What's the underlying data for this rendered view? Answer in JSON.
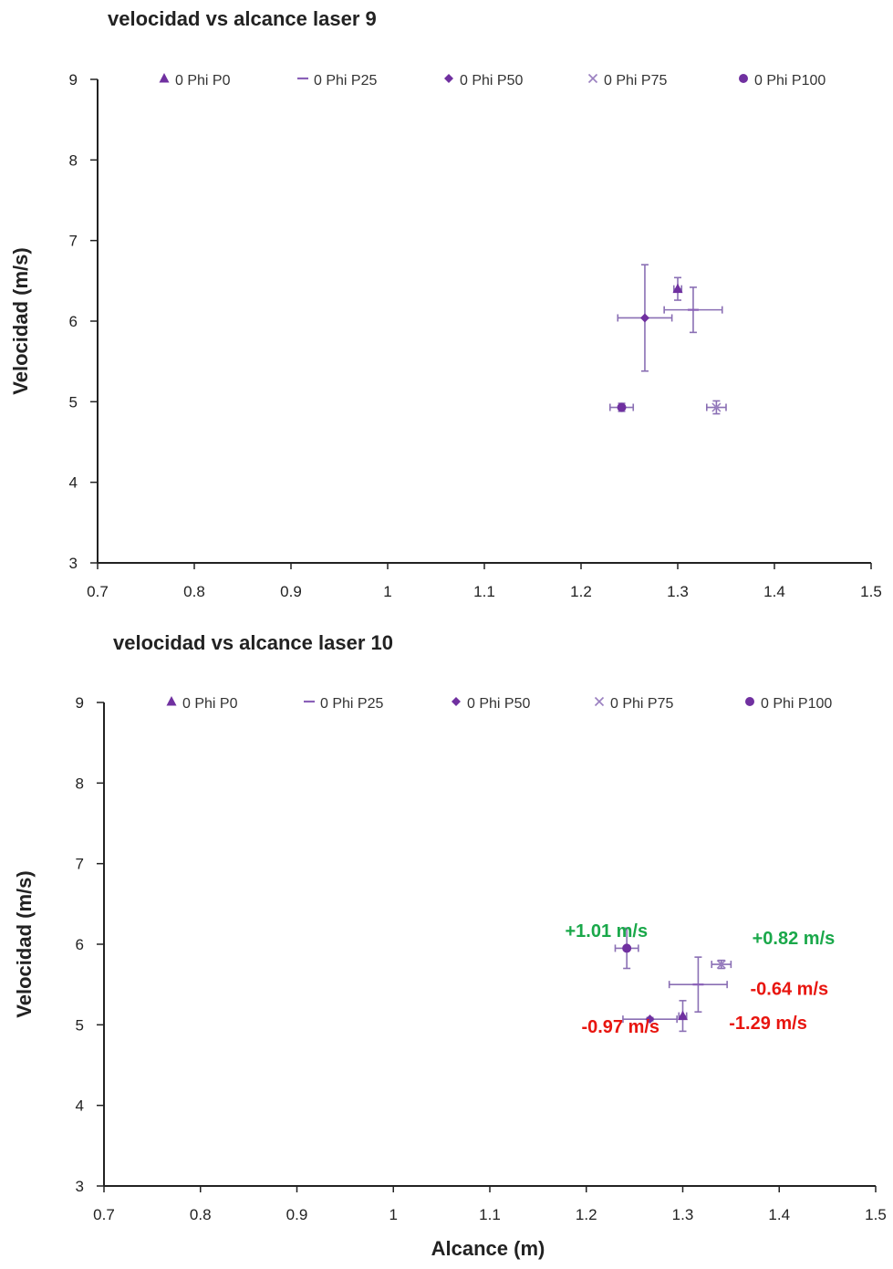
{
  "chart_data": [
    {
      "type": "scatter",
      "title": "velocidad vs alcance laser 9",
      "xlabel": "",
      "ylabel": "Velocidad (m/s)",
      "xlim": [
        0.7,
        1.5
      ],
      "ylim": [
        3,
        9
      ],
      "xticks": [
        "0.7",
        "0.8",
        "0.9",
        "1",
        "1.1",
        "1.2",
        "1.3",
        "1.4",
        "1.5"
      ],
      "yticks": [
        "3",
        "4",
        "5",
        "6",
        "7",
        "8",
        "9"
      ],
      "grid": false,
      "legend_position": "top",
      "series": [
        {
          "name": "0 Phi P0",
          "marker": "triangle",
          "color": "#7030a0",
          "x": 1.3,
          "y": 6.4,
          "xerr": 0.004,
          "yerr": 0.14
        },
        {
          "name": "0 Phi P25",
          "marker": "dash",
          "color": "#8a60b8",
          "x": 1.316,
          "y": 6.14,
          "xerr": 0.03,
          "yerr": 0.28
        },
        {
          "name": "0 Phi P50",
          "marker": "diamond",
          "color": "#7030a0",
          "x": 1.266,
          "y": 6.04,
          "xerr": 0.028,
          "yerr": 0.66
        },
        {
          "name": "0 Phi P75",
          "marker": "x",
          "color": "#9a7fc0",
          "x": 1.34,
          "y": 4.93,
          "xerr": 0.01,
          "yerr": 0.08
        },
        {
          "name": "0 Phi P100",
          "marker": "circle",
          "color": "#7030a0",
          "x": 1.242,
          "y": 4.93,
          "xerr": 0.012,
          "yerr": 0.05
        }
      ],
      "annotations": []
    },
    {
      "type": "scatter",
      "title": "velocidad vs alcance laser 10",
      "xlabel": "Alcance (m)",
      "ylabel": "Velocidad (m/s)",
      "xlim": [
        0.7,
        1.5
      ],
      "ylim": [
        3,
        9
      ],
      "xticks": [
        "0.7",
        "0.8",
        "0.9",
        "1",
        "1.1",
        "1.2",
        "1.3",
        "1.4",
        "1.5"
      ],
      "yticks": [
        "3",
        "4",
        "5",
        "6",
        "7",
        "8",
        "9"
      ],
      "grid": false,
      "legend_position": "top",
      "series": [
        {
          "name": "0 Phi P0",
          "marker": "triangle",
          "color": "#7030a0",
          "x": 1.3,
          "y": 5.11,
          "xerr": 0.004,
          "yerr": 0.19
        },
        {
          "name": "0 Phi P25",
          "marker": "dash",
          "color": "#8a60b8",
          "x": 1.316,
          "y": 5.5,
          "xerr": 0.03,
          "yerr": 0.34
        },
        {
          "name": "0 Phi P50",
          "marker": "diamond",
          "color": "#7030a0",
          "x": 1.266,
          "y": 5.07,
          "xerr": 0.028,
          "yerr": 0.02
        },
        {
          "name": "0 Phi P75",
          "marker": "x",
          "color": "#9a7fc0",
          "x": 1.34,
          "y": 5.75,
          "xerr": 0.01,
          "yerr": 0.05
        },
        {
          "name": "0 Phi P100",
          "marker": "circle",
          "color": "#7030a0",
          "x": 1.242,
          "y": 5.95,
          "xerr": 0.012,
          "yerr": 0.25
        }
      ],
      "annotations": [
        {
          "text": "+1.01 m/s",
          "color": "#1aa84a",
          "x": 1.178,
          "y": 6.09
        },
        {
          "text": "+0.82 m/s",
          "color": "#1aa84a",
          "x": 1.372,
          "y": 6.0
        },
        {
          "text": "-0.64 m/s",
          "color": "#e8150f",
          "x": 1.37,
          "y": 5.37
        },
        {
          "text": "-0.97 m/s",
          "color": "#e8150f",
          "x": 1.195,
          "y": 4.9
        },
        {
          "text": "-1.29 m/s",
          "color": "#e8150f",
          "x": 1.348,
          "y": 4.95
        }
      ]
    }
  ]
}
